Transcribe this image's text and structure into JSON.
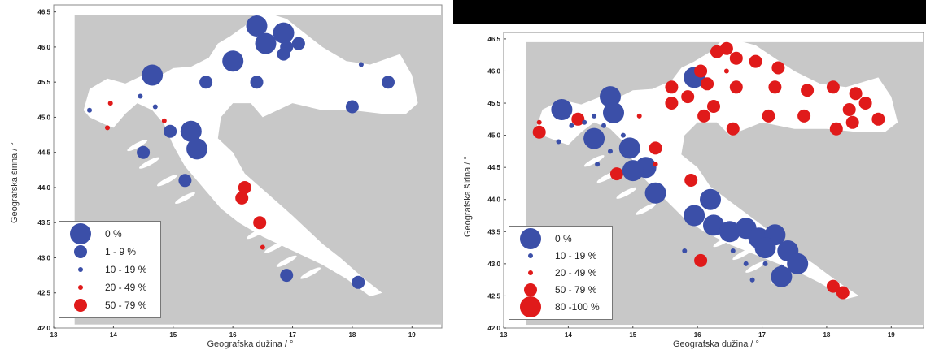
{
  "colors": {
    "blue": "#3b4fa8",
    "red": "#e01a1a",
    "sea": "#c8c8c8",
    "land": "#ffffff"
  },
  "chart_data": [
    {
      "type": "scatter",
      "xlabel": "Geografska dužina / °",
      "ylabel": "Geografska širina / °",
      "xlim": [
        13,
        19.5
      ],
      "ylim": [
        42,
        46.6
      ],
      "xticks": [
        "13",
        "14",
        "15",
        "16",
        "17",
        "18",
        "19"
      ],
      "yticks": [
        "42.0",
        "42.5",
        "43.0",
        "43.5",
        "44.0",
        "44.5",
        "45.0",
        "45.5",
        "46.0",
        "46.5"
      ],
      "legend_position": "bottom-left",
      "legend": [
        {
          "label": "0 %",
          "color": "blue",
          "size": 1
        },
        {
          "label": "1 - 9 %",
          "color": "blue",
          "size": 2
        },
        {
          "label": "10 - 19 %",
          "color": "blue",
          "size": 3
        },
        {
          "label": "20 - 49 %",
          "color": "red",
          "size": 3
        },
        {
          "label": "50 - 79 %",
          "color": "red",
          "size": 2
        }
      ],
      "points": [
        {
          "x": 16.4,
          "y": 46.3,
          "cls": 1
        },
        {
          "x": 16.55,
          "y": 46.05,
          "cls": 1
        },
        {
          "x": 16.85,
          "y": 46.2,
          "cls": 1
        },
        {
          "x": 16.0,
          "y": 45.8,
          "cls": 1
        },
        {
          "x": 14.65,
          "y": 45.6,
          "cls": 1
        },
        {
          "x": 15.3,
          "y": 44.8,
          "cls": 1
        },
        {
          "x": 15.4,
          "y": 44.55,
          "cls": 1
        },
        {
          "x": 16.9,
          "y": 46.0,
          "cls": 2
        },
        {
          "x": 17.1,
          "y": 46.05,
          "cls": 2
        },
        {
          "x": 16.85,
          "y": 45.9,
          "cls": 2
        },
        {
          "x": 15.55,
          "y": 45.5,
          "cls": 2
        },
        {
          "x": 16.4,
          "y": 45.5,
          "cls": 2
        },
        {
          "x": 18.6,
          "y": 45.5,
          "cls": 2
        },
        {
          "x": 18.0,
          "y": 45.15,
          "cls": 2
        },
        {
          "x": 14.95,
          "y": 44.8,
          "cls": 2
        },
        {
          "x": 14.5,
          "y": 44.5,
          "cls": 2
        },
        {
          "x": 15.2,
          "y": 44.1,
          "cls": 2
        },
        {
          "x": 16.9,
          "y": 42.75,
          "cls": 2
        },
        {
          "x": 18.1,
          "y": 42.65,
          "cls": 2
        },
        {
          "x": 18.15,
          "y": 45.75,
          "cls": 3
        },
        {
          "x": 14.45,
          "y": 45.3,
          "cls": 3
        },
        {
          "x": 14.7,
          "y": 45.15,
          "cls": 3
        },
        {
          "x": 13.6,
          "y": 45.1,
          "cls": 3
        },
        {
          "x": 13.95,
          "y": 45.2,
          "cls": 4
        },
        {
          "x": 13.9,
          "y": 44.85,
          "cls": 4
        },
        {
          "x": 14.85,
          "y": 44.95,
          "cls": 4
        },
        {
          "x": 16.5,
          "y": 43.15,
          "cls": 4
        },
        {
          "x": 16.2,
          "y": 44.0,
          "cls": 5
        },
        {
          "x": 16.15,
          "y": 43.85,
          "cls": 5
        },
        {
          "x": 16.45,
          "y": 43.5,
          "cls": 5
        }
      ]
    },
    {
      "type": "scatter",
      "xlabel": "Geografska dužina / °",
      "ylabel": "Geografska širina / °",
      "xlim": [
        13,
        19.5
      ],
      "ylim": [
        42,
        46.6
      ],
      "xticks": [
        "13",
        "14",
        "15",
        "16",
        "17",
        "18",
        "19"
      ],
      "yticks": [
        "42.0",
        "42.5",
        "43.0",
        "43.5",
        "44.0",
        "44.5",
        "45.0",
        "45.5",
        "46.0",
        "46.5"
      ],
      "legend_position": "bottom-left",
      "legend": [
        {
          "label": "0 %",
          "color": "blue",
          "size": 1
        },
        {
          "label": "10 - 19 %",
          "color": "blue",
          "size": 3
        },
        {
          "label": "20 - 49 %",
          "color": "red",
          "size": 3
        },
        {
          "label": "50 - 79 %",
          "color": "red",
          "size": 2
        },
        {
          "label": "80 -100 %",
          "color": "red",
          "size": 1
        }
      ],
      "points": [
        {
          "x": 15.95,
          "y": 45.9,
          "cls": 1
        },
        {
          "x": 14.65,
          "y": 45.6,
          "cls": 1
        },
        {
          "x": 14.7,
          "y": 45.35,
          "cls": 1
        },
        {
          "x": 14.95,
          "y": 44.8,
          "cls": 1
        },
        {
          "x": 15.2,
          "y": 44.5,
          "cls": 1
        },
        {
          "x": 16.45,
          "y": 46.0,
          "cls": 3
        },
        {
          "x": 15.1,
          "y": 45.3,
          "cls": 3
        },
        {
          "x": 15.35,
          "y": 44.55,
          "cls": 3
        },
        {
          "x": 13.55,
          "y": 45.2,
          "cls": 3
        },
        {
          "x": 16.3,
          "y": 46.3,
          "cls": 4
        },
        {
          "x": 16.6,
          "y": 46.2,
          "cls": 4
        },
        {
          "x": 16.9,
          "y": 46.15,
          "cls": 4
        },
        {
          "x": 17.25,
          "y": 46.05,
          "cls": 4
        },
        {
          "x": 16.45,
          "y": 46.35,
          "cls": 4
        },
        {
          "x": 16.05,
          "y": 46.0,
          "cls": 4
        },
        {
          "x": 16.15,
          "y": 45.8,
          "cls": 4
        },
        {
          "x": 15.6,
          "y": 45.75,
          "cls": 4
        },
        {
          "x": 15.85,
          "y": 45.6,
          "cls": 4
        },
        {
          "x": 16.25,
          "y": 45.45,
          "cls": 4
        },
        {
          "x": 16.6,
          "y": 45.75,
          "cls": 4
        },
        {
          "x": 17.2,
          "y": 45.75,
          "cls": 4
        },
        {
          "x": 17.7,
          "y": 45.7,
          "cls": 4
        },
        {
          "x": 18.1,
          "y": 45.75,
          "cls": 4
        },
        {
          "x": 18.45,
          "y": 45.65,
          "cls": 4
        },
        {
          "x": 18.35,
          "y": 45.4,
          "cls": 4
        },
        {
          "x": 18.6,
          "y": 45.5,
          "cls": 4
        },
        {
          "x": 18.15,
          "y": 45.1,
          "cls": 4
        },
        {
          "x": 17.1,
          "y": 45.3,
          "cls": 4
        },
        {
          "x": 16.55,
          "y": 45.1,
          "cls": 4
        },
        {
          "x": 16.1,
          "y": 45.3,
          "cls": 4
        },
        {
          "x": 15.6,
          "y": 45.5,
          "cls": 4
        },
        {
          "x": 18.4,
          "y": 45.2,
          "cls": 4
        },
        {
          "x": 18.8,
          "y": 45.25,
          "cls": 4
        },
        {
          "x": 17.65,
          "y": 45.3,
          "cls": 4
        },
        {
          "x": 15.35,
          "y": 44.8,
          "cls": 4
        },
        {
          "x": 13.55,
          "y": 45.05,
          "cls": 4
        },
        {
          "x": 14.75,
          "y": 44.4,
          "cls": 4
        },
        {
          "x": 15.9,
          "y": 44.3,
          "cls": 4
        },
        {
          "x": 16.05,
          "y": 43.05,
          "cls": 4
        },
        {
          "x": 18.1,
          "y": 42.65,
          "cls": 4
        },
        {
          "x": 18.25,
          "y": 42.55,
          "cls": 4
        },
        {
          "x": 14.15,
          "y": 45.25,
          "cls": 4
        },
        {
          "x": 13.9,
          "y": 45.4,
          "cls": 2
        },
        {
          "x": 14.25,
          "y": 45.2,
          "cls": 2
        },
        {
          "x": 14.4,
          "y": 45.3,
          "cls": 2
        },
        {
          "x": 14.55,
          "y": 45.15,
          "cls": 2
        },
        {
          "x": 13.85,
          "y": 44.9,
          "cls": 2
        },
        {
          "x": 14.05,
          "y": 45.15,
          "cls": 2
        },
        {
          "x": 14.65,
          "y": 44.75,
          "cls": 2
        },
        {
          "x": 14.85,
          "y": 45.0,
          "cls": 2
        },
        {
          "x": 14.45,
          "y": 44.55,
          "cls": 2
        },
        {
          "x": 15.8,
          "y": 43.2,
          "cls": 2
        },
        {
          "x": 16.55,
          "y": 43.2,
          "cls": 2
        },
        {
          "x": 16.75,
          "y": 43.0,
          "cls": 2
        },
        {
          "x": 17.05,
          "y": 43.0,
          "cls": 2
        },
        {
          "x": 16.85,
          "y": 42.75,
          "cls": 2
        },
        {
          "x": 17.3,
          "y": 42.95,
          "cls": 2
        },
        {
          "x": 14.4,
          "y": 44.95,
          "cls": 1
        },
        {
          "x": 15.0,
          "y": 44.45,
          "cls": 1
        },
        {
          "x": 15.35,
          "y": 44.1,
          "cls": 1
        },
        {
          "x": 15.95,
          "y": 43.75,
          "cls": 1
        },
        {
          "x": 16.2,
          "y": 44.0,
          "cls": 1
        },
        {
          "x": 16.25,
          "y": 43.6,
          "cls": 1
        },
        {
          "x": 16.5,
          "y": 43.5,
          "cls": 1
        },
        {
          "x": 16.75,
          "y": 43.55,
          "cls": 1
        },
        {
          "x": 16.95,
          "y": 43.4,
          "cls": 1
        },
        {
          "x": 17.2,
          "y": 43.45,
          "cls": 1
        },
        {
          "x": 17.05,
          "y": 43.25,
          "cls": 1
        },
        {
          "x": 17.4,
          "y": 43.2,
          "cls": 1
        },
        {
          "x": 17.55,
          "y": 43.0,
          "cls": 1
        },
        {
          "x": 17.3,
          "y": 42.8,
          "cls": 1
        },
        {
          "x": 13.9,
          "y": 45.4,
          "cls": 1
        }
      ]
    }
  ]
}
